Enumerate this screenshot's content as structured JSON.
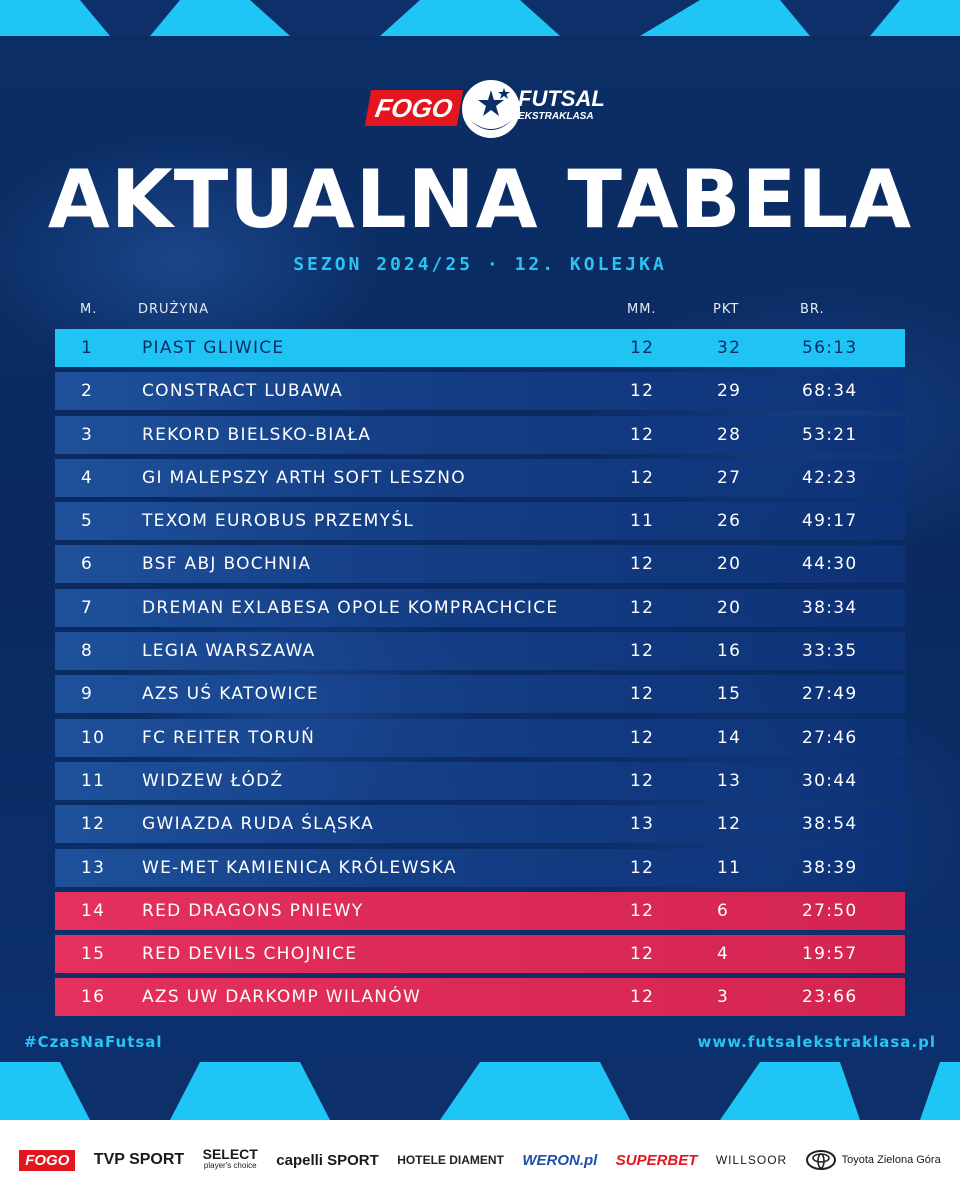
{
  "brand": {
    "fogo": "FOGO",
    "futsal": "FUTSAL",
    "ekstraklasa": "EKSTRAKLASA"
  },
  "title": "AKTUALNA TABELA",
  "subtitle": "SEZON 2024/25 · 12. KOLEJKA",
  "headers": {
    "pos": "M.",
    "team": "DRUŻYNA",
    "mm": "MM.",
    "pkt": "PKT",
    "br": "BR."
  },
  "rows": [
    {
      "pos": "1",
      "team": "PIAST GLIWICE",
      "mm": "12",
      "pkt": "32",
      "br": "56:13"
    },
    {
      "pos": "2",
      "team": "CONSTRACT LUBAWA",
      "mm": "12",
      "pkt": "29",
      "br": "68:34"
    },
    {
      "pos": "3",
      "team": "REKORD BIELSKO-BIAŁA",
      "mm": "12",
      "pkt": "28",
      "br": "53:21"
    },
    {
      "pos": "4",
      "team": "GI MALEPSZY ARTH SOFT LESZNO",
      "mm": "12",
      "pkt": "27",
      "br": "42:23"
    },
    {
      "pos": "5",
      "team": "TEXOM EUROBUS PRZEMYŚL",
      "mm": "11",
      "pkt": "26",
      "br": "49:17"
    },
    {
      "pos": "6",
      "team": "BSF ABJ BOCHNIA",
      "mm": "12",
      "pkt": "20",
      "br": "44:30"
    },
    {
      "pos": "7",
      "team": "DREMAN EXLABESA OPOLE KOMPRACHCICE",
      "mm": "12",
      "pkt": "20",
      "br": "38:34"
    },
    {
      "pos": "8",
      "team": "LEGIA WARSZAWA",
      "mm": "12",
      "pkt": "16",
      "br": "33:35"
    },
    {
      "pos": "9",
      "team": "AZS UŚ KATOWICE",
      "mm": "12",
      "pkt": "15",
      "br": "27:49"
    },
    {
      "pos": "10",
      "team": "FC REITER TORUŃ",
      "mm": "12",
      "pkt": "14",
      "br": "27:46"
    },
    {
      "pos": "11",
      "team": "WIDZEW ŁÓDŹ",
      "mm": "12",
      "pkt": "13",
      "br": "30:44"
    },
    {
      "pos": "12",
      "team": "GWIAZDA RUDA ŚLĄSKA",
      "mm": "13",
      "pkt": "12",
      "br": "38:54"
    },
    {
      "pos": "13",
      "team": "WE-MET KAMIENICA KRÓLEWSKA",
      "mm": "12",
      "pkt": "11",
      "br": "38:39"
    },
    {
      "pos": "14",
      "team": "RED DRAGONS PNIEWY",
      "mm": "12",
      "pkt": "6",
      "br": "27:50"
    },
    {
      "pos": "15",
      "team": "RED DEVILS CHOJNICE",
      "mm": "12",
      "pkt": "4",
      "br": "19:57"
    },
    {
      "pos": "16",
      "team": "AZS UW DARKOMP WILANÓW",
      "mm": "12",
      "pkt": "3",
      "br": "23:66"
    }
  ],
  "footer": {
    "hashtag": "#CzasNaFutsal",
    "url": "www.futsalekstraklasa.pl"
  },
  "sponsors": {
    "fogo": "FOGO",
    "tvp": "TVP SPORT",
    "select": "SELECT",
    "select_sub": "player's choice",
    "capelli": "capelli SPORT",
    "hotele": "HOTELE DIAMENT",
    "weron": "WERON.pl",
    "superbet": "SUPERBET",
    "willsoor": "WILLSOOR",
    "toyota": "Toyota Zielona Góra"
  },
  "colors": {
    "background": "#0a2a5e",
    "accent_cyan": "#29c4f2",
    "leader_row": "#1fc3f4",
    "relegation_row": "#e4305c",
    "brand_red": "#e3151f"
  }
}
